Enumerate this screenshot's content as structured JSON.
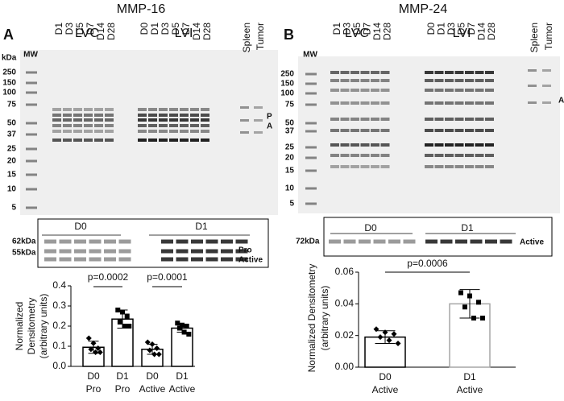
{
  "panels": [
    {
      "label": "A",
      "title": "MMP-16",
      "groups": [
        "LVC",
        "LVI"
      ],
      "lvc_lanes": [
        "D1",
        "D3",
        "D5",
        "D7",
        "D14",
        "D28"
      ],
      "lvi_lanes": [
        "D0",
        "D1",
        "D3",
        "D5",
        "D7",
        "D14",
        "D28"
      ],
      "controls": [
        "Spleen",
        "Tumor"
      ],
      "mw": "MW",
      "kda": "kDa",
      "markers": [
        250,
        150,
        100,
        75,
        50,
        37,
        25,
        20,
        15,
        10,
        5
      ],
      "band_labels": [
        "P",
        "A"
      ],
      "inset": {
        "groups": [
          "D0",
          "D1"
        ],
        "sizes": [
          "62kDa",
          "55kDa"
        ],
        "forms": [
          "Pro",
          "Active"
        ]
      }
    },
    {
      "label": "B",
      "title": "MMP-24",
      "groups": [
        "LVC",
        "LVI"
      ],
      "lvc_lanes": [
        "D1",
        "D3",
        "D5",
        "D7",
        "D14",
        "D28"
      ],
      "lvi_lanes": [
        "D0",
        "D1",
        "D3",
        "D5",
        "D7",
        "D14",
        "D28"
      ],
      "controls": [
        "Spleen",
        "Tumor"
      ],
      "mw": "MW",
      "kda": "kDa",
      "markers": [
        250,
        150,
        100,
        75,
        50,
        37,
        25,
        20,
        15,
        10,
        5
      ],
      "band_labels": [
        "A"
      ],
      "inset": {
        "groups": [
          "D0",
          "D1"
        ],
        "sizes": [
          "72kDa"
        ],
        "forms": [
          "Active"
        ]
      }
    }
  ],
  "chart_data": [
    {
      "type": "bar",
      "ylabel": [
        "Normalized",
        "Densitometry",
        "(arbitrary units)"
      ],
      "categories": [
        "D0",
        "D1",
        "D0",
        "D1"
      ],
      "subcategories": [
        "Pro",
        "Pro",
        "Active",
        "Active"
      ],
      "values": [
        0.095,
        0.235,
        0.085,
        0.19
      ],
      "errors": [
        0.03,
        0.045,
        0.025,
        0.02
      ],
      "points": [
        [
          0.14,
          0.115,
          0.09,
          0.085,
          0.07,
          0.07
        ],
        [
          0.28,
          0.27,
          0.25,
          0.22,
          0.2,
          0.2
        ],
        [
          0.12,
          0.11,
          0.09,
          0.08,
          0.06,
          0.06
        ],
        [
          0.215,
          0.205,
          0.2,
          0.19,
          0.17,
          0.16
        ]
      ],
      "colors": [
        "#000000",
        "#000000",
        "#000000",
        "#000000"
      ],
      "ylim": [
        0,
        0.4
      ],
      "yticks": [
        {
          "value": 0,
          "label": "0.0"
        },
        0.1,
        0.2,
        0.3,
        0.4
      ],
      "annotations": [
        "p=0.0002",
        "p=0.0001"
      ]
    },
    {
      "type": "bar",
      "ylabel": [
        "Normalized Densitometry",
        "(arbitrary units)"
      ],
      "categories": [
        "D0",
        "D1"
      ],
      "subcategories": [
        "Active",
        "Active"
      ],
      "values": [
        0.019,
        0.04
      ],
      "errors": [
        0.004,
        0.009
      ],
      "points": [
        [
          0.024,
          0.022,
          0.021,
          0.019,
          0.017,
          0.015
        ],
        [
          0.047,
          0.045,
          0.041,
          0.038,
          0.031,
          0.031
        ]
      ],
      "colors": [
        "#000000",
        "#a6a6a6"
      ],
      "ylim": [
        0,
        0.06
      ],
      "yticks": [
        {
          "value": 0,
          "label": "0.00"
        },
        0.02,
        0.04,
        0.06
      ],
      "annotations": [
        "p=0.0006"
      ]
    }
  ]
}
